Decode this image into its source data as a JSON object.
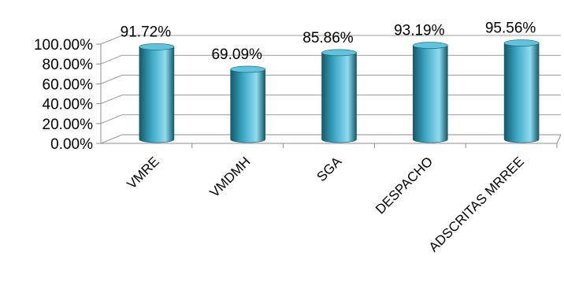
{
  "chart_data": {
    "type": "bar",
    "style": "3d-cylinder",
    "categories": [
      "VMRE",
      "VMDMH",
      "SGA",
      "DESPACHO",
      "ADSCRITAS MRREE"
    ],
    "values": [
      91.72,
      69.09,
      85.86,
      93.19,
      95.56
    ],
    "value_labels": [
      "91.72%",
      "69.09%",
      "85.86%",
      "93.19%",
      "95.56%"
    ],
    "y_ticks": [
      "0.00%",
      "20.00%",
      "40.00%",
      "60.00%",
      "80.00%",
      "100.00%"
    ],
    "ylim": [
      0,
      100
    ],
    "grid": true,
    "title": "",
    "xlabel": "",
    "ylabel": "",
    "colors": {
      "bar_dark": "#16596a",
      "bar_mid": "#3aa6c4",
      "bar_light": "#8fdcee",
      "bar_top": "#5ec4dd"
    }
  }
}
